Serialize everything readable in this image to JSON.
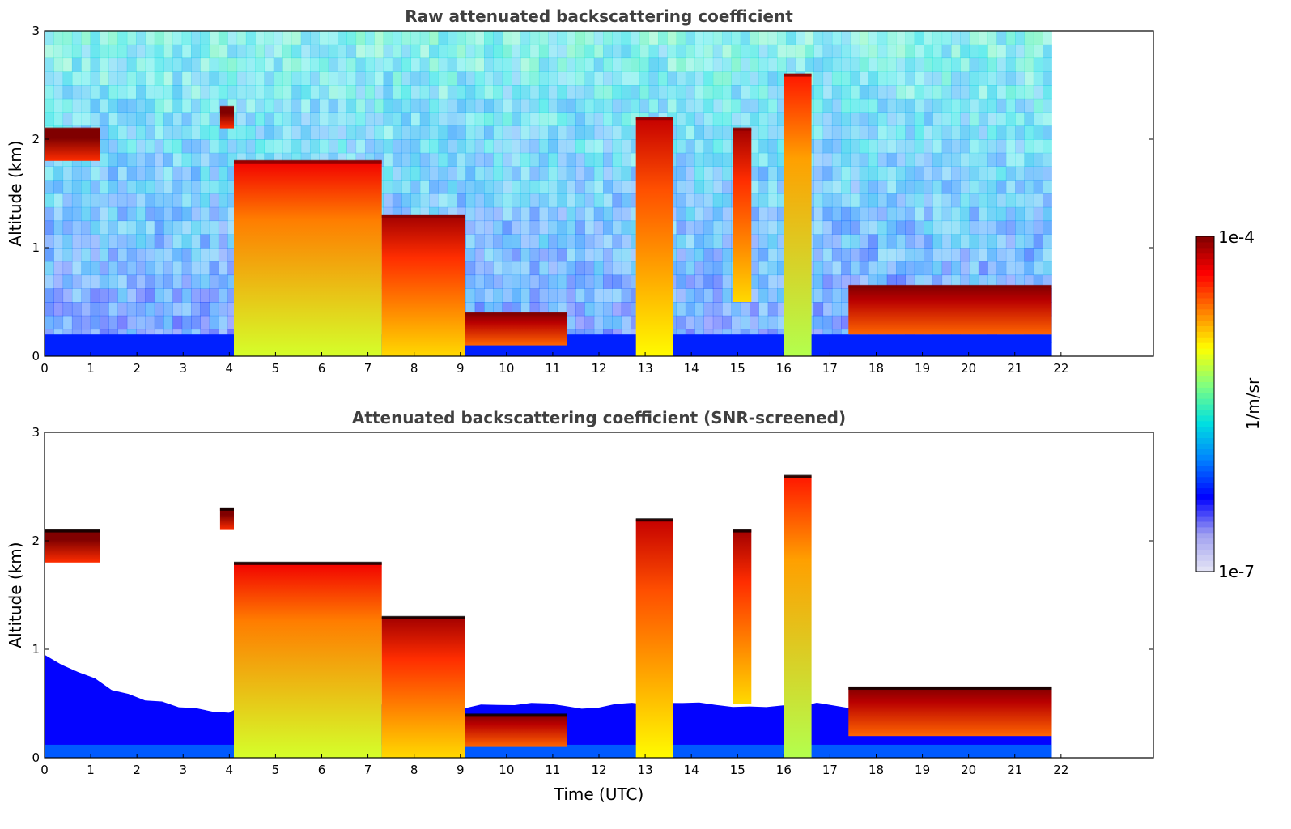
{
  "chart_data": [
    {
      "type": "heatmap",
      "title": "Raw attenuated backscattering coefficient",
      "xlabel": "",
      "ylabel": "Altitude (km)",
      "xlim": [
        0,
        24
      ],
      "ylim": [
        0,
        3
      ],
      "xticks": [
        "0",
        "1",
        "2",
        "3",
        "4",
        "5",
        "6",
        "7",
        "8",
        "9",
        "10",
        "11",
        "12",
        "13",
        "14",
        "15",
        "16",
        "17",
        "18",
        "19",
        "20",
        "21",
        "22"
      ],
      "yticks": [
        "0",
        "1",
        "2",
        "3"
      ],
      "data_end_time": 21.8,
      "features": [
        {
          "t_start": 0.0,
          "t_end": 1.2,
          "alt_bottom": 1.8,
          "alt_top": 2.1,
          "level": 1.0
        },
        {
          "t_start": 3.8,
          "t_end": 4.1,
          "alt_bottom": 2.1,
          "alt_top": 2.3,
          "level": 1.0
        },
        {
          "t_start": 4.1,
          "t_end": 7.3,
          "alt_bottom": 0.0,
          "alt_top": 1.8,
          "level": 0.78
        },
        {
          "t_start": 7.3,
          "t_end": 9.1,
          "alt_bottom": 0.0,
          "alt_top": 1.3,
          "level": 0.85
        },
        {
          "t_start": 9.1,
          "t_end": 11.3,
          "alt_bottom": 0.1,
          "alt_top": 0.4,
          "level": 0.95
        },
        {
          "t_start": 12.8,
          "t_end": 13.6,
          "alt_bottom": 0.0,
          "alt_top": 2.2,
          "level": 0.82
        },
        {
          "t_start": 14.9,
          "t_end": 15.3,
          "alt_bottom": 0.5,
          "alt_top": 2.1,
          "level": 0.85
        },
        {
          "t_start": 16.0,
          "t_end": 16.6,
          "alt_bottom": 0.0,
          "alt_top": 2.6,
          "level": 0.75
        },
        {
          "t_start": 17.4,
          "t_end": 21.8,
          "alt_bottom": 0.2,
          "alt_top": 0.65,
          "level": 0.95
        }
      ]
    },
    {
      "type": "heatmap",
      "title": "Attenuated backscattering coefficient (SNR-screened)",
      "xlabel": "Time (UTC)",
      "ylabel": "Altitude (km)",
      "xlim": [
        0,
        24
      ],
      "ylim": [
        0,
        3
      ],
      "xticks": [
        "0",
        "1",
        "2",
        "3",
        "4",
        "5",
        "6",
        "7",
        "8",
        "9",
        "10",
        "11",
        "12",
        "13",
        "14",
        "15",
        "16",
        "17",
        "18",
        "19",
        "20",
        "21",
        "22"
      ],
      "yticks": [
        "0",
        "1",
        "2",
        "3"
      ],
      "data_end_time": 21.8,
      "screened": true
    }
  ],
  "colorbar": {
    "max_label": "1e-4",
    "min_label": "1e-7",
    "unit_label": "1/m/sr",
    "colors": [
      "#e6e6f5",
      "#a0a0f0",
      "#0000ff",
      "#0080ff",
      "#00e0e0",
      "#80ff80",
      "#ffff00",
      "#ff8000",
      "#ff0000",
      "#800000"
    ]
  }
}
